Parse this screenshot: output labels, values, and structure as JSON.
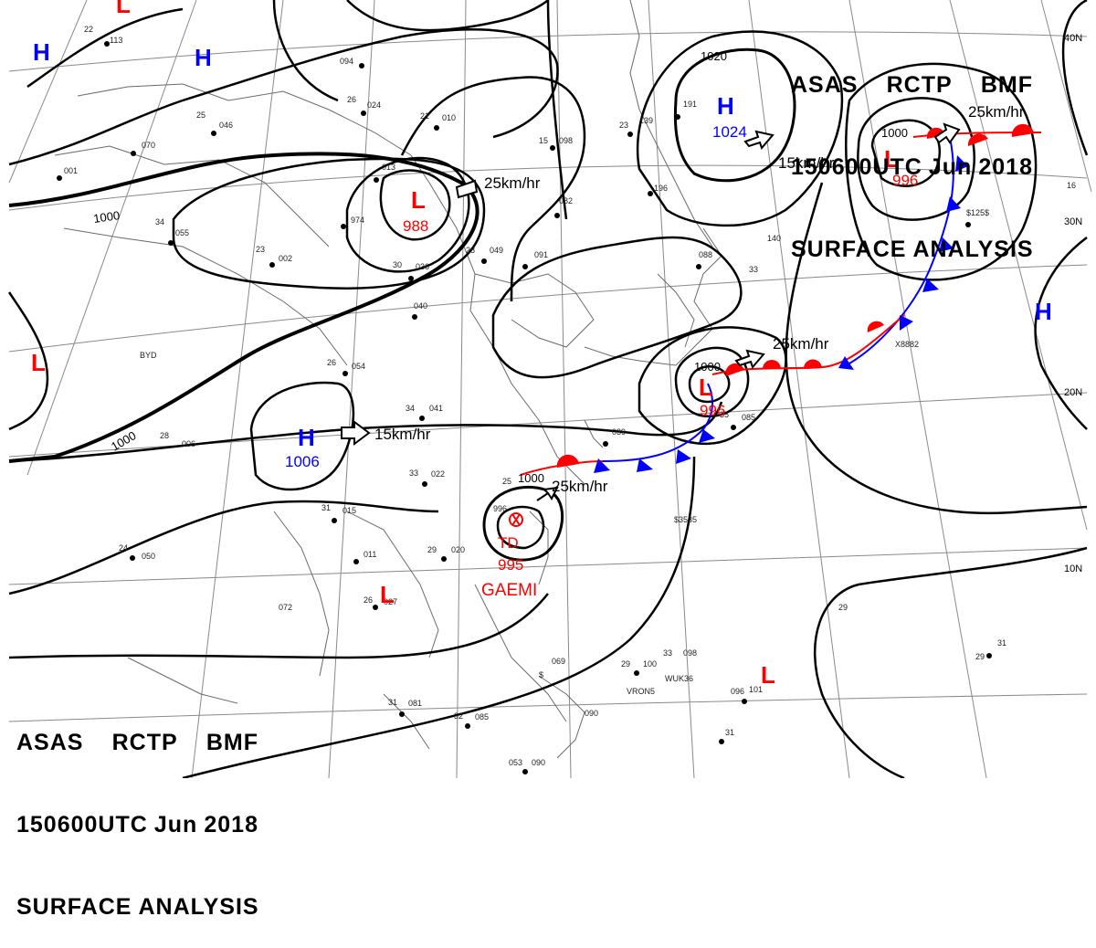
{
  "header": {
    "agency": "ASAS",
    "station": "RCTP",
    "office": "BMF",
    "datetime": "150600UTC",
    "month": "Jun",
    "year": "2018",
    "product": "SURFACE ANALYSIS"
  },
  "latitude_labels": [
    "40N",
    "30N",
    "20N",
    "10N"
  ],
  "pressure_systems": [
    {
      "id": "low-nw",
      "type": "L",
      "value": "988",
      "color": "#ff0000"
    },
    {
      "id": "low-ne",
      "type": "L",
      "value": "996",
      "color": "#ff0000"
    },
    {
      "id": "low-japan",
      "type": "L",
      "value": "996",
      "color": "#ff0000"
    },
    {
      "id": "low-west",
      "type": "L",
      "value": "",
      "color": "#ff0000"
    },
    {
      "id": "low-indochina",
      "type": "L",
      "value": "",
      "color": "#ff0000"
    },
    {
      "id": "low-pacific",
      "type": "L",
      "value": "",
      "color": "#ff0000"
    },
    {
      "id": "low-topleft",
      "type": "L",
      "value": "",
      "color": "#ff0000"
    },
    {
      "id": "high-north",
      "type": "H",
      "value": "1024",
      "color": "#0000ff"
    },
    {
      "id": "high-china",
      "type": "H",
      "value": "1006",
      "color": "#0000ff"
    },
    {
      "id": "high-nw1",
      "type": "H",
      "value": "",
      "color": "#0000ff"
    },
    {
      "id": "high-nw2",
      "type": "H",
      "value": "",
      "color": "#0000ff"
    },
    {
      "id": "high-east",
      "type": "H",
      "value": "",
      "color": "#0000ff"
    }
  ],
  "tropical_depression": {
    "label": "TD",
    "pressure": "995",
    "name": "GAEMI",
    "color": "#ff0000"
  },
  "motion_labels": [
    "25km/hr",
    "15km/hr",
    "25km/hr",
    "25km/hr",
    "15km/hr",
    "25km/hr"
  ],
  "isobar_labels": [
    "1000",
    "1000",
    "1000",
    "1020",
    "1000",
    "1000"
  ],
  "station_samples": [
    "22",
    "113",
    "094",
    "26",
    "024",
    "21",
    "010",
    "013",
    "974",
    "046",
    "25",
    "070",
    "001",
    "34",
    "055",
    "23",
    "002",
    "30",
    "036",
    "28",
    "049",
    "091",
    "15",
    "098",
    "082",
    "23",
    "139",
    "191",
    "196",
    "140",
    "088",
    "040",
    "054",
    "26",
    "041",
    "34",
    "006",
    "28",
    "015",
    "31",
    "022",
    "33",
    "011",
    "29",
    "020",
    "24",
    "050",
    "072",
    "26",
    "027",
    "25",
    "996",
    "039",
    "085",
    "35",
    "29",
    "100",
    "33",
    "098",
    "081",
    "31",
    "085",
    "32",
    "069",
    "090",
    "31",
    "101",
    "096",
    "29",
    "29",
    "31",
    "090",
    "053",
    "33",
    "X8882",
    "WUK36",
    "VRON5",
    "$125$",
    "$3535",
    "BYD",
    "16",
    "$",
    "$"
  ],
  "colors": {
    "isobar": "#000000",
    "grid": "#888888",
    "coast": "#666666",
    "warm_front": "#ff0000",
    "cold_front": "#0000ff",
    "low": "#ff0000",
    "high": "#0000ff"
  }
}
